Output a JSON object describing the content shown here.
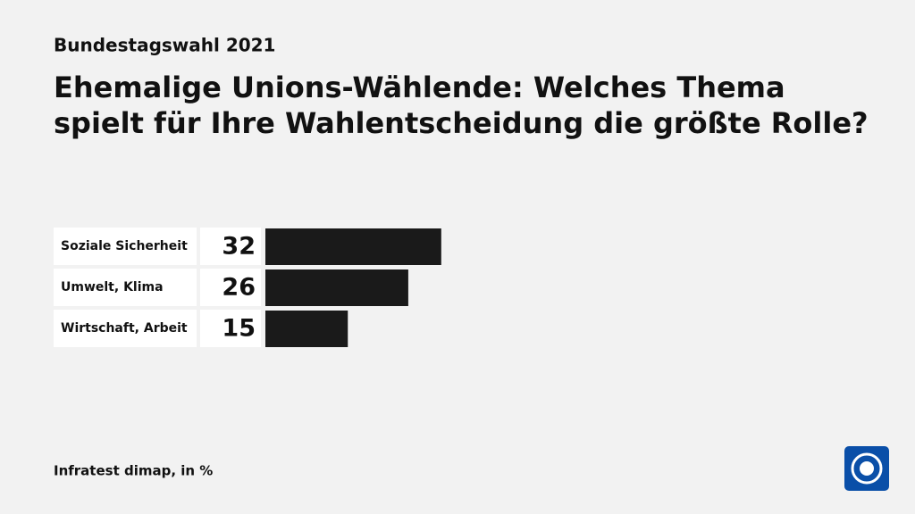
{
  "chart_data": {
    "type": "bar",
    "supertitle": "Bundestagswahl 2021",
    "title": [
      "Ehemalige Unions-Wählende: Welches Thema",
      "spielt für Ihre Wahlentscheidung die größte Rolle?"
    ],
    "categories": [
      "Soziale Sicherheit",
      "Umwelt, Klima",
      "Wirtschaft, Arbeit"
    ],
    "values": [
      32,
      26,
      15
    ],
    "color": "#1a1a1a",
    "source": "Infratest dimap, in %"
  }
}
